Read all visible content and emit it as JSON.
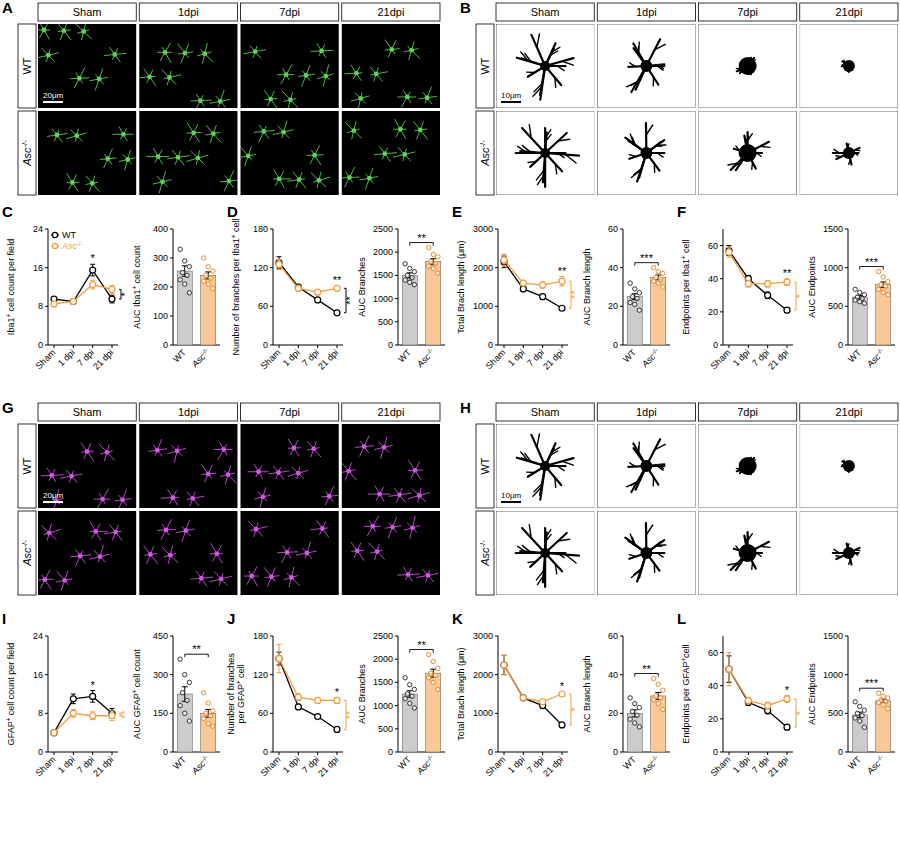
{
  "image_panels": [
    {
      "panel": "A",
      "type": "fluorescence",
      "columns": [
        "Sham",
        "1dpi",
        "7dpi",
        "21dpi"
      ],
      "rows": [
        "WT",
        "Asc-/-"
      ],
      "scale_bar": "20μm",
      "background": "#000000",
      "color": "#5ed35a"
    },
    {
      "panel": "B",
      "type": "tracing",
      "columns": [
        "Sham",
        "1dpi",
        "7dpi",
        "21dpi"
      ],
      "rows": [
        "WT",
        "Asc-/-"
      ],
      "scale_bar": "10μm",
      "background": "#ffffff",
      "color": "#000000"
    },
    {
      "panel": "G",
      "type": "fluorescence",
      "columns": [
        "Sham",
        "1dpi",
        "7dpi",
        "21dpi"
      ],
      "rows": [
        "WT",
        "Asc-/-"
      ],
      "scale_bar": "20μm",
      "background": "#000000",
      "color": "#d357e6"
    },
    {
      "panel": "H",
      "type": "tracing",
      "columns": [
        "Sham",
        "1dpi",
        "7dpi",
        "21dpi"
      ],
      "rows": [
        "WT",
        "Asc-/-"
      ],
      "scale_bar": "10μm",
      "background": "#ffffff",
      "color": "#000000"
    }
  ],
  "chart_data": [
    {
      "type": "line",
      "panel": "C",
      "y_label": "Iba1+ cell count per field",
      "x": [
        "Sham",
        "1 dpi",
        "7 dpi",
        "21 dpi"
      ],
      "ylim": [
        0,
        24
      ],
      "yticks": [
        0,
        8,
        16,
        24
      ],
      "legend": "top-left",
      "series": [
        {
          "name": "WT",
          "color": "#000000",
          "marker": "circle",
          "values": [
            9.5,
            9,
            15.5,
            9.5
          ],
          "errors": [
            0.4,
            0.4,
            1.2,
            0.8
          ]
        },
        {
          "name": "Asc-/-",
          "color": "#f39c3c",
          "marker": "circle",
          "values": [
            8.5,
            9,
            12.5,
            11.5
          ],
          "errors": [
            0.4,
            0.4,
            0.9,
            0.8
          ]
        }
      ],
      "annotations": [
        {
          "text": "*",
          "x": "7 dpi",
          "color": "#000000"
        }
      ],
      "bracket": {
        "text": "*",
        "color": "#000000"
      }
    },
    {
      "type": "bar",
      "y_label": "AUC Iba1+ cell count",
      "categories": [
        "WT",
        "Asc-/-"
      ],
      "values": [
        255,
        240
      ],
      "errors": [
        18,
        12
      ],
      "colors": [
        "#cccccc",
        "#f9c896"
      ],
      "points": [
        [
          330,
          290,
          270,
          250,
          240,
          225,
          210,
          180
        ],
        [
          300,
          270,
          255,
          240,
          230,
          220,
          210,
          195
        ]
      ],
      "ylim": [
        0,
        400
      ],
      "yticks": [
        0,
        100,
        200,
        300,
        400
      ]
    },
    {
      "type": "line",
      "panel": "D",
      "y_label": "Number of branches per Iba1+ cell",
      "x": [
        "Sham",
        "1 dpi",
        "7 dpi",
        "21 dpi"
      ],
      "ylim": [
        0,
        180
      ],
      "yticks": [
        0,
        60,
        120,
        180
      ],
      "series": [
        {
          "name": "WT",
          "color": "#000000",
          "marker": "circle",
          "values": [
            128,
            90,
            70,
            50
          ],
          "errors": [
            9,
            4,
            3,
            2
          ]
        },
        {
          "name": "Asc-/-",
          "color": "#f39c3c",
          "marker": "circle",
          "values": [
            125,
            88,
            82,
            88
          ],
          "errors": [
            8,
            4,
            3,
            3
          ]
        }
      ],
      "annotations": [
        {
          "text": "**",
          "x": "21 dpi",
          "color": "#000000"
        }
      ],
      "bracket": {
        "text": "**",
        "color": "#000000"
      }
    },
    {
      "type": "bar",
      "y_label": "AUC Branches",
      "categories": [
        "WT",
        "Asc-/-"
      ],
      "values": [
        1500,
        1800
      ],
      "errors": [
        55,
        60
      ],
      "colors": [
        "#cccccc",
        "#f9c896"
      ],
      "points": [
        [
          1750,
          1650,
          1580,
          1500,
          1450,
          1400,
          1350,
          1300
        ],
        [
          2100,
          1950,
          1900,
          1800,
          1750,
          1700,
          1650,
          1550
        ]
      ],
      "ylim": [
        0,
        2500
      ],
      "yticks": [
        0,
        500,
        1000,
        1500,
        2000,
        2500
      ],
      "annotations": [
        {
          "text": "**"
        }
      ]
    },
    {
      "type": "line",
      "panel": "E",
      "y_label": "Total Brach length (μm)",
      "x": [
        "Sham",
        "1 dpi",
        "7 dpi",
        "21 dpi"
      ],
      "ylim": [
        0,
        3000
      ],
      "yticks": [
        0,
        1000,
        2000,
        3000
      ],
      "series": [
        {
          "name": "WT",
          "color": "#000000",
          "marker": "circle",
          "values": [
            2150,
            1450,
            1250,
            950
          ],
          "errors": [
            150,
            60,
            60,
            50
          ]
        },
        {
          "name": "Asc-/-",
          "color": "#f39c3c",
          "marker": "circle",
          "values": [
            2200,
            1600,
            1550,
            1650
          ],
          "errors": [
            150,
            60,
            80,
            120
          ]
        }
      ],
      "annotations": [
        {
          "text": "**",
          "x": "21 dpi",
          "color": "#000000"
        }
      ],
      "bracket": {
        "text": "**",
        "color": "#f39c3c"
      }
    },
    {
      "type": "bar",
      "y_label": "AUC Branch length",
      "categories": [
        "WT",
        "Asc-/-"
      ],
      "values": [
        25,
        35
      ],
      "errors": [
        1.5,
        1.2
      ],
      "colors": [
        "#cccccc",
        "#f9c896"
      ],
      "points": [
        [
          32,
          29,
          27,
          25,
          24,
          22,
          21,
          18
        ],
        [
          40,
          38,
          37,
          35,
          34,
          33,
          32,
          30
        ]
      ],
      "ylim": [
        0,
        60
      ],
      "yticks": [
        0,
        20,
        40,
        60
      ],
      "annotations": [
        {
          "text": "***"
        }
      ]
    },
    {
      "type": "line",
      "panel": "F",
      "y_label": "Endpoints per Iba1+ cell",
      "x": [
        "Sham",
        "1 dpi",
        "7 dpi",
        "21 dpi"
      ],
      "ylim": [
        0,
        70
      ],
      "yticks": [
        0,
        20,
        40,
        60
      ],
      "series": [
        {
          "name": "WT",
          "color": "#000000",
          "marker": "circle",
          "values": [
            57,
            40,
            30,
            21
          ],
          "errors": [
            3,
            2,
            2,
            1.5
          ]
        },
        {
          "name": "Asc-/-",
          "color": "#f39c3c",
          "marker": "circle",
          "values": [
            56,
            37,
            37,
            38
          ],
          "errors": [
            3,
            2,
            2,
            2
          ]
        }
      ],
      "annotations": [
        {
          "text": "**",
          "x": "21 dpi",
          "color": "#000000"
        }
      ],
      "bracket": {
        "text": "*",
        "color": "#f39c3c"
      }
    },
    {
      "type": "bar",
      "y_label": "AUC Endpoints",
      "categories": [
        "WT",
        "Asc-/-"
      ],
      "values": [
        620,
        780
      ],
      "errors": [
        20,
        35
      ],
      "colors": [
        "#cccccc",
        "#f9c896"
      ],
      "points": [
        [
          720,
          680,
          650,
          620,
          600,
          580,
          560,
          540
        ],
        [
          950,
          880,
          820,
          780,
          760,
          720,
          680,
          650
        ]
      ],
      "ylim": [
        0,
        1500
      ],
      "yticks": [
        0,
        500,
        1000,
        1500
      ],
      "annotations": [
        {
          "text": "***"
        }
      ]
    },
    {
      "type": "line",
      "panel": "I",
      "y_label": "GFAP+ cell count per field",
      "x": [
        "Sham",
        "1 dpi",
        "7 dpi",
        "21 dpi"
      ],
      "ylim": [
        0,
        24
      ],
      "yticks": [
        0,
        8,
        16,
        24
      ],
      "series": [
        {
          "name": "WT",
          "color": "#000000",
          "marker": "circle",
          "values": [
            4,
            11,
            11.5,
            8
          ],
          "errors": [
            0.5,
            1,
            1.2,
            1
          ]
        },
        {
          "name": "Asc-/-",
          "color": "#f39c3c",
          "marker": "circle",
          "values": [
            4,
            8,
            7.5,
            7.5
          ],
          "errors": [
            0.5,
            0.8,
            0.8,
            1
          ]
        }
      ],
      "annotations": [
        {
          "text": "*",
          "x": "7 dpi",
          "color": "#000000"
        }
      ],
      "bracket": {
        "text": "**",
        "color": "#f39c3c"
      }
    },
    {
      "type": "bar",
      "y_label": "AUC GFAP+ cell count",
      "categories": [
        "WT",
        "Asc-/-"
      ],
      "values": [
        225,
        150
      ],
      "errors": [
        28,
        15
      ],
      "colors": [
        "#cccccc",
        "#f9c896"
      ],
      "points": [
        [
          360,
          300,
          270,
          230,
          200,
          180,
          150,
          120
        ],
        [
          230,
          190,
          160,
          150,
          140,
          130,
          110,
          100
        ]
      ],
      "ylim": [
        0,
        450
      ],
      "yticks": [
        0,
        150,
        300,
        450
      ],
      "annotations": [
        {
          "text": "**"
        }
      ]
    },
    {
      "type": "line",
      "panel": "J",
      "y_label": "Number of branches per GFAP+ cell",
      "x": [
        "Sham",
        "1 dpi",
        "7 dpi",
        "21 dpi"
      ],
      "ylim": [
        0,
        180
      ],
      "yticks": [
        0,
        60,
        120,
        180
      ],
      "series": [
        {
          "name": "WT",
          "color": "#000000",
          "marker": "circle",
          "values": [
            145,
            70,
            55,
            35
          ],
          "errors": [
            10,
            4,
            3,
            2
          ]
        },
        {
          "name": "Asc-/-",
          "color": "#f39c3c",
          "marker": "circle",
          "values": [
            145,
            85,
            80,
            80
          ],
          "errors": [
            22,
            5,
            4,
            4
          ]
        }
      ],
      "annotations": [
        {
          "text": "*",
          "x": "21 dpi",
          "color": "#000000"
        }
      ],
      "bracket": {
        "text": "**",
        "color": "#f39c3c"
      }
    },
    {
      "type": "bar",
      "y_label": "AUC Branches",
      "categories": [
        "WT",
        "Asc-/-"
      ],
      "values": [
        1250,
        1700
      ],
      "errors": [
        70,
        85
      ],
      "colors": [
        "#cccccc",
        "#f9c896"
      ],
      "points": [
        [
          1600,
          1450,
          1350,
          1250,
          1200,
          1150,
          1050,
          950
        ],
        [
          2100,
          1950,
          1800,
          1700,
          1650,
          1600,
          1500,
          1350
        ]
      ],
      "ylim": [
        0,
        2500
      ],
      "yticks": [
        0,
        500,
        1000,
        1500,
        2000,
        2500
      ],
      "annotations": [
        {
          "text": "**"
        }
      ]
    },
    {
      "type": "line",
      "panel": "K",
      "y_label": "Total Brach length (μm)",
      "x": [
        "Sham",
        "1 dpi",
        "7 dpi",
        "21 dpi"
      ],
      "ylim": [
        0,
        3000
      ],
      "yticks": [
        0,
        1000,
        2000,
        3000
      ],
      "series": [
        {
          "name": "WT",
          "color": "#000000",
          "marker": "circle",
          "values": [
            2250,
            1400,
            1200,
            700
          ],
          "errors": [
            250,
            60,
            60,
            40
          ]
        },
        {
          "name": "Asc-/-",
          "color": "#f39c3c",
          "marker": "circle",
          "values": [
            2250,
            1400,
            1300,
            1500
          ],
          "errors": [
            250,
            60,
            60,
            50
          ]
        }
      ],
      "annotations": [
        {
          "text": "*",
          "x": "21 dpi",
          "color": "#000000"
        }
      ],
      "bracket": {
        "text": "*",
        "color": "#f39c3c"
      }
    },
    {
      "type": "bar",
      "y_label": "AUC Branch length",
      "categories": [
        "WT",
        "Asc-/-"
      ],
      "values": [
        20,
        29
      ],
      "errors": [
        1.8,
        1.8
      ],
      "colors": [
        "#cccccc",
        "#f9c896"
      ],
      "points": [
        [
          28,
          25,
          23,
          21,
          19,
          17,
          15,
          13
        ],
        [
          38,
          35,
          32,
          29,
          28,
          27,
          25,
          22
        ]
      ],
      "ylim": [
        0,
        60
      ],
      "yticks": [
        0,
        20,
        40,
        60
      ],
      "annotations": [
        {
          "text": "**"
        }
      ]
    },
    {
      "type": "line",
      "panel": "L",
      "y_label": "Endpoints per GFAP+cell",
      "x": [
        "Sham",
        "1 dpi",
        "7 dpi",
        "21 dpi"
      ],
      "ylim": [
        0,
        70
      ],
      "yticks": [
        0,
        20,
        40,
        60
      ],
      "series": [
        {
          "name": "WT",
          "color": "#000000",
          "marker": "circle",
          "values": [
            50,
            30,
            25,
            15
          ],
          "errors": [
            8,
            2,
            2,
            1.5
          ]
        },
        {
          "name": "Asc-/-",
          "color": "#f39c3c",
          "marker": "circle",
          "values": [
            50,
            31,
            28,
            32
          ],
          "errors": [
            10,
            2,
            2,
            2
          ]
        }
      ],
      "annotations": [
        {
          "text": "*",
          "x": "21 dpi",
          "color": "#000000"
        }
      ],
      "bracket": {
        "text": "*",
        "color": "#f39c3c"
      }
    },
    {
      "type": "bar",
      "y_label": "AUC Endpoints",
      "categories": [
        "WT",
        "Asc-/-"
      ],
      "values": [
        480,
        660
      ],
      "errors": [
        35,
        22
      ],
      "colors": [
        "#cccccc",
        "#f9c896"
      ],
      "points": [
        [
          650,
          590,
          540,
          500,
          470,
          440,
          400,
          320
        ],
        [
          760,
          720,
          700,
          670,
          650,
          640,
          610,
          560
        ]
      ],
      "ylim": [
        0,
        1500
      ],
      "yticks": [
        0,
        500,
        1000,
        1500
      ],
      "annotations": [
        {
          "text": "***"
        }
      ]
    }
  ]
}
